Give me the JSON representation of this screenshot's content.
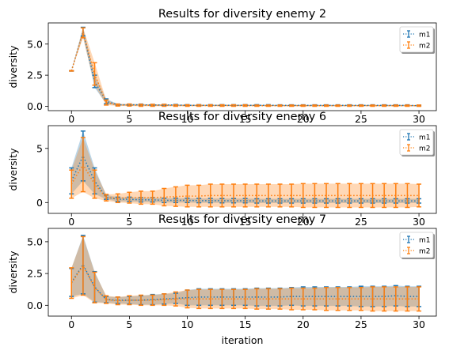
{
  "colors": {
    "m1": "#1f77b4",
    "m2": "#ff7f0e",
    "axis": "#000000"
  },
  "chart_data": [
    {
      "type": "line",
      "title": "Results for diversity enemy 2",
      "xlabel": "",
      "ylabel": "diversity",
      "xlim": [
        -2,
        31.5
      ],
      "ylim": [
        -0.35,
        6.7
      ],
      "xticks": [
        0,
        5,
        10,
        15,
        20,
        25,
        30
      ],
      "yticks": [
        0.0,
        2.5,
        5.0
      ],
      "ytick_labels": [
        "0.0",
        "2.5",
        "5.0"
      ],
      "legend_position": "top-right",
      "series": [
        {
          "name": "m1",
          "mean": [
            2.85,
            6.0,
            2.0,
            0.4,
            0.12,
            0.12,
            0.12,
            0.1,
            0.1,
            0.1,
            0.08,
            0.08,
            0.08,
            0.08,
            0.08,
            0.08,
            0.08,
            0.08,
            0.07,
            0.07,
            0.07,
            0.07,
            0.07,
            0.07,
            0.07,
            0.07,
            0.07,
            0.07,
            0.07,
            0.07,
            0.05
          ],
          "err": [
            0.02,
            0.35,
            0.5,
            0.2,
            0.06,
            0.06,
            0.06,
            0.05,
            0.05,
            0.05,
            0.05,
            0.05,
            0.05,
            0.05,
            0.05,
            0.05,
            0.05,
            0.05,
            0.05,
            0.05,
            0.05,
            0.05,
            0.05,
            0.05,
            0.05,
            0.05,
            0.05,
            0.05,
            0.05,
            0.05,
            0.04
          ]
        },
        {
          "name": "m2",
          "mean": [
            2.85,
            5.9,
            2.6,
            0.3,
            0.1,
            0.1,
            0.08,
            0.08,
            0.08,
            0.06,
            0.06,
            0.06,
            0.06,
            0.06,
            0.06,
            0.06,
            0.05,
            0.05,
            0.05,
            0.05,
            0.05,
            0.05,
            0.05,
            0.05,
            0.05,
            0.05,
            0.05,
            0.05,
            0.05,
            0.05,
            0.05
          ],
          "err": [
            0.02,
            0.4,
            0.9,
            0.2,
            0.08,
            0.08,
            0.08,
            0.08,
            0.08,
            0.06,
            0.06,
            0.06,
            0.06,
            0.06,
            0.06,
            0.06,
            0.05,
            0.05,
            0.05,
            0.05,
            0.05,
            0.05,
            0.05,
            0.05,
            0.05,
            0.05,
            0.05,
            0.05,
            0.05,
            0.05,
            0.05
          ]
        }
      ]
    },
    {
      "type": "line",
      "title": "Results for diversity enemy 6",
      "xlabel": "",
      "ylabel": "diversity",
      "xlim": [
        -2,
        31.5
      ],
      "ylim": [
        -1.0,
        7.1
      ],
      "xticks": [
        0,
        5,
        10,
        15,
        20,
        25,
        30
      ],
      "yticks": [
        0,
        5
      ],
      "ytick_labels": [
        "0",
        "5"
      ],
      "legend_position": "top-right",
      "series": [
        {
          "name": "m1",
          "mean": [
            2.0,
            4.3,
            2.0,
            0.5,
            0.3,
            0.3,
            0.25,
            0.25,
            0.2,
            0.2,
            0.2,
            0.18,
            0.18,
            0.17,
            0.17,
            0.17,
            0.15,
            0.15,
            0.15,
            0.15,
            0.15,
            0.15,
            0.15,
            0.15,
            0.15,
            0.15,
            0.15,
            0.15,
            0.15,
            0.15,
            0.15
          ],
          "err": [
            1.2,
            2.3,
            1.2,
            0.2,
            0.2,
            0.2,
            0.2,
            0.2,
            0.2,
            0.2,
            0.2,
            0.2,
            0.2,
            0.2,
            0.2,
            0.2,
            0.2,
            0.2,
            0.2,
            0.2,
            0.2,
            0.2,
            0.2,
            0.2,
            0.2,
            0.2,
            0.2,
            0.2,
            0.2,
            0.2,
            0.2
          ]
        },
        {
          "name": "m2",
          "mean": [
            1.7,
            3.5,
            1.7,
            0.45,
            0.4,
            0.45,
            0.45,
            0.45,
            0.5,
            0.55,
            0.6,
            0.6,
            0.65,
            0.65,
            0.65,
            0.65,
            0.65,
            0.65,
            0.65,
            0.65,
            0.65,
            0.65,
            0.65,
            0.65,
            0.65,
            0.65,
            0.65,
            0.65,
            0.65,
            0.65,
            0.65
          ],
          "err": [
            1.3,
            2.5,
            1.3,
            0.3,
            0.4,
            0.5,
            0.6,
            0.6,
            0.8,
            0.9,
            1.0,
            1.0,
            1.05,
            1.05,
            1.05,
            1.05,
            1.05,
            1.05,
            1.05,
            1.05,
            1.1,
            1.1,
            1.1,
            1.1,
            1.1,
            1.1,
            1.1,
            1.1,
            1.1,
            1.1,
            1.05
          ]
        }
      ]
    },
    {
      "type": "line",
      "title": "Results for diversity enemy 7",
      "xlabel": "iteration",
      "ylabel": "diversity",
      "xlim": [
        -2,
        31.5
      ],
      "ylim": [
        -0.85,
        6.05
      ],
      "xticks": [
        0,
        5,
        10,
        15,
        20,
        25,
        30
      ],
      "yticks": [
        0.0,
        2.5,
        5.0
      ],
      "ytick_labels": [
        "0.0",
        "2.5",
        "5.0"
      ],
      "legend_position": "top-right",
      "series": [
        {
          "name": "m1",
          "mean": [
            1.8,
            3.2,
            1.45,
            0.45,
            0.4,
            0.4,
            0.4,
            0.45,
            0.5,
            0.55,
            0.6,
            0.65,
            0.65,
            0.65,
            0.65,
            0.65,
            0.65,
            0.65,
            0.65,
            0.7,
            0.7,
            0.7,
            0.7,
            0.7,
            0.7,
            0.7,
            0.7,
            0.7,
            0.75,
            0.7,
            0.7
          ],
          "err": [
            1.1,
            2.3,
            1.2,
            0.25,
            0.25,
            0.3,
            0.35,
            0.4,
            0.4,
            0.4,
            0.6,
            0.65,
            0.65,
            0.65,
            0.65,
            0.65,
            0.7,
            0.7,
            0.7,
            0.7,
            0.75,
            0.75,
            0.75,
            0.75,
            0.75,
            0.8,
            0.8,
            0.8,
            0.8,
            0.8,
            0.8
          ]
        },
        {
          "name": "m2",
          "mean": [
            1.75,
            3.1,
            1.4,
            0.45,
            0.35,
            0.4,
            0.4,
            0.4,
            0.45,
            0.5,
            0.5,
            0.5,
            0.5,
            0.5,
            0.5,
            0.5,
            0.5,
            0.5,
            0.5,
            0.5,
            0.5,
            0.5,
            0.5,
            0.5,
            0.5,
            0.5,
            0.5,
            0.5,
            0.5,
            0.5,
            0.5
          ],
          "err": [
            1.2,
            2.3,
            1.2,
            0.3,
            0.3,
            0.35,
            0.4,
            0.4,
            0.45,
            0.55,
            0.7,
            0.75,
            0.75,
            0.75,
            0.75,
            0.75,
            0.8,
            0.8,
            0.8,
            0.85,
            0.85,
            0.85,
            0.9,
            0.9,
            0.9,
            0.9,
            0.95,
            0.95,
            0.95,
            0.95,
            0.95
          ]
        }
      ]
    }
  ]
}
